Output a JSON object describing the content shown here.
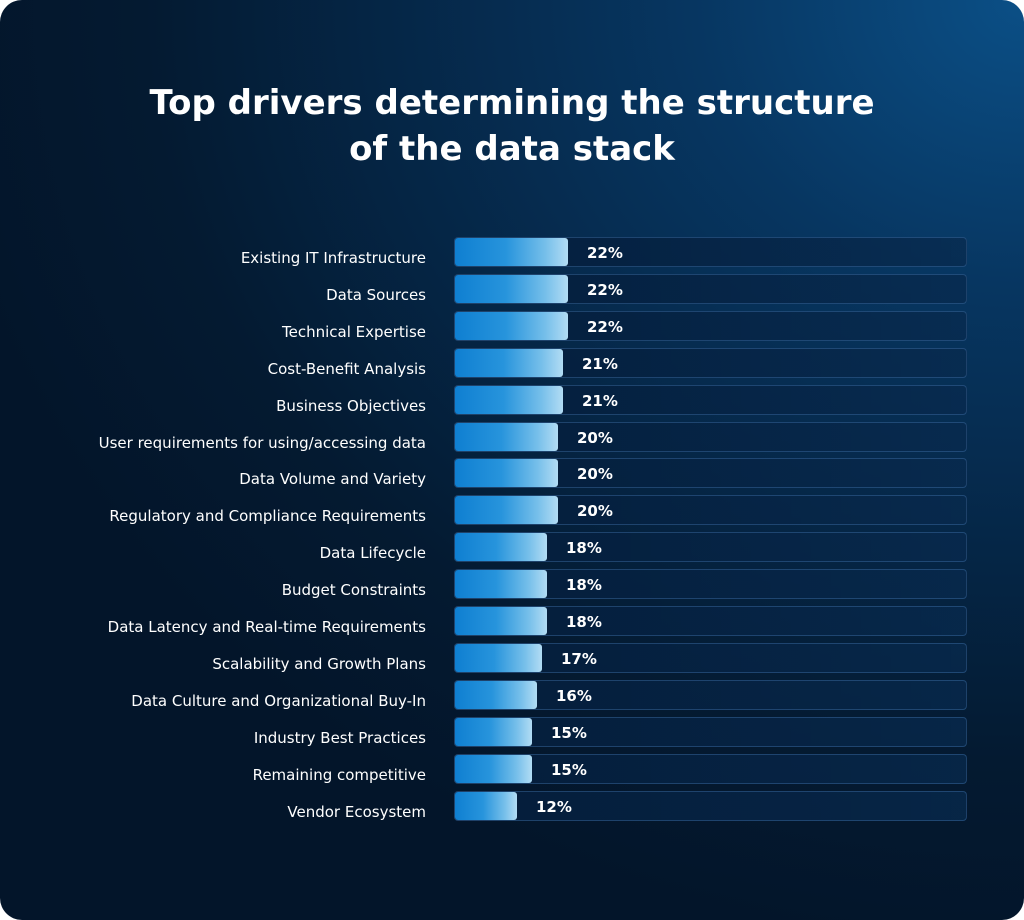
{
  "chart_data": {
    "type": "bar",
    "orientation": "horizontal",
    "title": "Top drivers determining the structure of the data stack",
    "title_lines": [
      "Top drivers determining the structure",
      "of the data stack"
    ],
    "categories": [
      "Existing IT Infrastructure",
      "Data Sources",
      "Technical Expertise",
      "Cost-Benefit Analysis",
      "Business Objectives",
      "User requirements for using/accessing data",
      "Data Volume and Variety",
      "Regulatory and Compliance Requirements",
      "Data Lifecycle",
      "Budget Constraints",
      "Data Latency and Real-time Requirements",
      "Scalability and Growth Plans",
      "Data Culture and Organizational Buy-In",
      "Industry Best Practices",
      "Remaining competitive",
      "Vendor Ecosystem"
    ],
    "values": [
      22,
      22,
      22,
      21,
      21,
      20,
      20,
      20,
      18,
      18,
      18,
      17,
      16,
      15,
      15,
      12
    ],
    "value_labels": [
      "22%",
      "22%",
      "22%",
      "21%",
      "21%",
      "20%",
      "20%",
      "20%",
      "18%",
      "18%",
      "18%",
      "17%",
      "16%",
      "15%",
      "15%",
      "12%"
    ],
    "xlim": [
      0,
      100
    ],
    "unit": "%",
    "grid": false,
    "legend": "none",
    "colors": {
      "bar_start": "#0f7fd1",
      "bar_end": "#b2dcf4",
      "background": "#052646",
      "text": "#ffffff"
    }
  }
}
